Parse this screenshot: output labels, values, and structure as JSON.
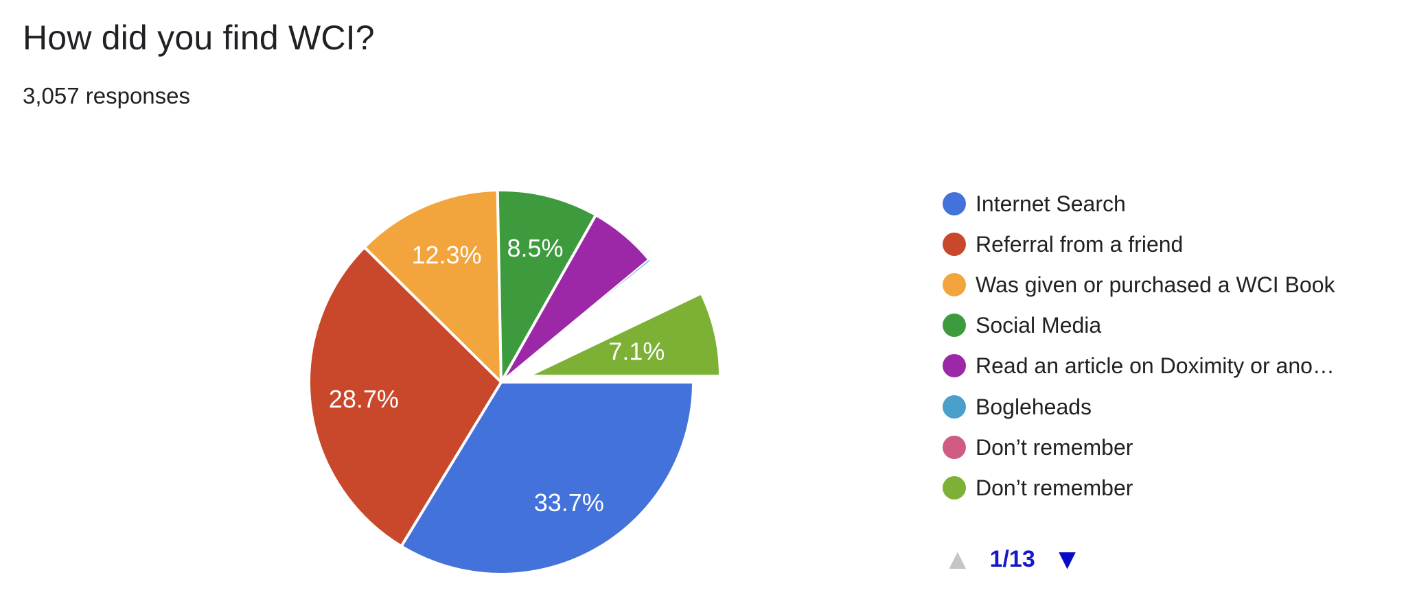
{
  "header": {
    "title": "How did you find WCI?",
    "subtitle": "3,057 responses"
  },
  "chart_data": {
    "type": "pie",
    "title": "How did you find WCI?",
    "subtitle": "3,057 responses",
    "legend_position": "right",
    "start_angle_clockwise_from_top_deg": 90,
    "slices": [
      {
        "label": "Internet Search",
        "percent": 33.7,
        "percent_label": "33.7%",
        "color": "#4472DB",
        "label_shown": true,
        "exploded": false,
        "estimated": false
      },
      {
        "label": "Referral from a friend",
        "percent": 28.7,
        "percent_label": "28.7%",
        "color": "#C9472A",
        "label_shown": true,
        "exploded": false,
        "estimated": false
      },
      {
        "label": "Was given or purchased a WCI Book",
        "percent": 12.3,
        "percent_label": "12.3%",
        "color": "#F2A53C",
        "label_shown": true,
        "exploded": false,
        "estimated": false
      },
      {
        "label": "Social Media",
        "percent": 8.5,
        "percent_label": "8.5%",
        "color": "#3D9A3D",
        "label_shown": true,
        "exploded": false,
        "estimated": false
      },
      {
        "label": "Read an article on Doximity or ano…",
        "percent": 5.8,
        "percent_label": "",
        "color": "#9C28A8",
        "label_shown": false,
        "exploded": false,
        "estimated": true
      },
      {
        "label": "Bogleheads",
        "percent": 0.2,
        "percent_label": "",
        "color": "#4AA0CB",
        "label_shown": false,
        "exploded": false,
        "estimated": true,
        "hairline": true
      },
      {
        "label": "Don’t remember",
        "percent": 0.15,
        "percent_label": "",
        "color": "#D15C83",
        "label_shown": false,
        "exploded": false,
        "estimated": true,
        "hairline": false
      },
      {
        "label": "",
        "percent": 3.55,
        "percent_label": "",
        "color": "#FFFFFF",
        "label_shown": false,
        "exploded": false,
        "estimated": true,
        "invisible": true
      },
      {
        "label": "Don’t remember",
        "percent": 7.1,
        "percent_label": "7.1%",
        "color": "#7CB136",
        "label_shown": true,
        "exploded": true,
        "estimated": false
      }
    ]
  },
  "legend": {
    "items": [
      {
        "label": "Internet Search",
        "color": "#4472DB"
      },
      {
        "label": "Referral from a friend",
        "color": "#C9472A"
      },
      {
        "label": "Was given or purchased a WCI Book",
        "color": "#F2A53C"
      },
      {
        "label": "Social Media",
        "color": "#3D9A3D"
      },
      {
        "label": "Read an article on Doximity or ano…",
        "color": "#9C28A8"
      },
      {
        "label": "Bogleheads",
        "color": "#4AA0CB"
      },
      {
        "label": "Don’t remember",
        "color": "#D15C83"
      },
      {
        "label": "Don’t remember",
        "color": "#7CB136"
      }
    ],
    "pagination": {
      "label": "1/13",
      "prev_enabled": false,
      "next_enabled": true,
      "prev_arrow_color": "#C5C5C5",
      "next_arrow_color": "#0A0AC6",
      "label_color": "#1717CC",
      "prev_glyph": "▲",
      "next_glyph": "▼"
    }
  }
}
